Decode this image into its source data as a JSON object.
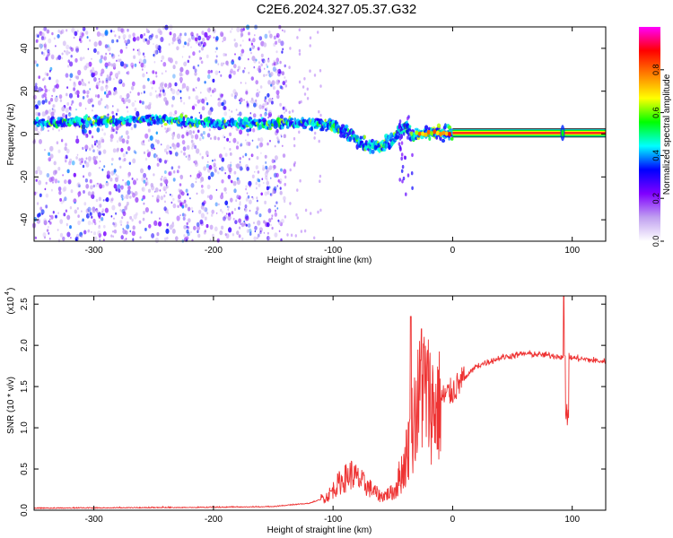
{
  "page": {
    "title": "C2E6.2024.327.05.37.G32"
  },
  "chart_data": [
    {
      "type": "heatmap",
      "name": "spectrogram",
      "xlabel": "Height of straight line (km)",
      "ylabel": "Frequency (Hz)",
      "xlim": [
        -350,
        128
      ],
      "ylim": [
        -50,
        50
      ],
      "xticks": [
        -300,
        -200,
        -100,
        0,
        100
      ],
      "yticks": [
        -40,
        -20,
        0,
        20,
        40
      ],
      "noise_region_x": [
        -350,
        -140
      ],
      "ridge": [
        {
          "x": -350,
          "y": 5
        },
        {
          "x": -300,
          "y": 6
        },
        {
          "x": -250,
          "y": 7
        },
        {
          "x": -200,
          "y": 5
        },
        {
          "x": -150,
          "y": 5
        },
        {
          "x": -120,
          "y": 5
        },
        {
          "x": -100,
          "y": 4
        },
        {
          "x": -90,
          "y": 1
        },
        {
          "x": -80,
          "y": -3
        },
        {
          "x": -70,
          "y": -6
        },
        {
          "x": -60,
          "y": -5
        },
        {
          "x": -50,
          "y": -3
        },
        {
          "x": -40,
          "y": 5
        },
        {
          "x": -35,
          "y": 0
        },
        {
          "x": -25,
          "y": 1
        },
        {
          "x": 0,
          "y": 0.5
        },
        {
          "x": 128,
          "y": 0.5
        }
      ],
      "steady_tone": {
        "x_start": 0,
        "x_end": 128,
        "y": 0.5,
        "spike_x": 92
      },
      "colorbar": {
        "label": "Normalized spectral amplitude",
        "range": [
          0,
          1
        ],
        "ticks": [
          "0.0",
          "0.2",
          "0.4",
          "0.6",
          "0.8"
        ],
        "colormap": [
          "#ffffff",
          "#c0a0f0",
          "#8000ff",
          "#0000ff",
          "#00ffff",
          "#00ff00",
          "#ffff00",
          "#ff8000",
          "#ff0000",
          "#ff00ff"
        ]
      }
    },
    {
      "type": "line",
      "name": "snr",
      "xlabel": "Height of straight line (km)",
      "ylabel": "SNR (10 * v/v)",
      "scale_note": "(x10",
      "scale_exp": "4",
      "xlim": [
        -350,
        128
      ],
      "ylim": [
        0,
        2.6
      ],
      "xticks": [
        -300,
        -200,
        -100,
        0,
        100
      ],
      "yticks": [
        "0.0",
        "0.5",
        "1.0",
        "1.5",
        "2.0",
        "2.5"
      ],
      "color": "#ee3333",
      "envelope": [
        {
          "x": -350,
          "y": 0.02
        },
        {
          "x": -200,
          "y": 0.03
        },
        {
          "x": -150,
          "y": 0.04
        },
        {
          "x": -120,
          "y": 0.08
        },
        {
          "x": -105,
          "y": 0.15
        },
        {
          "x": -95,
          "y": 0.3
        },
        {
          "x": -85,
          "y": 0.4
        },
        {
          "x": -75,
          "y": 0.3
        },
        {
          "x": -60,
          "y": 0.15
        },
        {
          "x": -50,
          "y": 0.2
        },
        {
          "x": -40,
          "y": 0.6
        },
        {
          "x": -32,
          "y": 1.2
        },
        {
          "x": -25,
          "y": 1.6
        },
        {
          "x": -15,
          "y": 1.3
        },
        {
          "x": 0,
          "y": 1.45
        },
        {
          "x": 20,
          "y": 1.75
        },
        {
          "x": 40,
          "y": 1.85
        },
        {
          "x": 60,
          "y": 1.9
        },
        {
          "x": 80,
          "y": 1.88
        },
        {
          "x": 100,
          "y": 1.85
        },
        {
          "x": 128,
          "y": 1.8
        }
      ],
      "spikes": [
        {
          "x": -35,
          "y": 2.35
        },
        {
          "x": -26,
          "y": 2.2
        },
        {
          "x": 93,
          "y": 2.6
        },
        {
          "x": 96,
          "y": 1.0
        }
      ]
    }
  ]
}
